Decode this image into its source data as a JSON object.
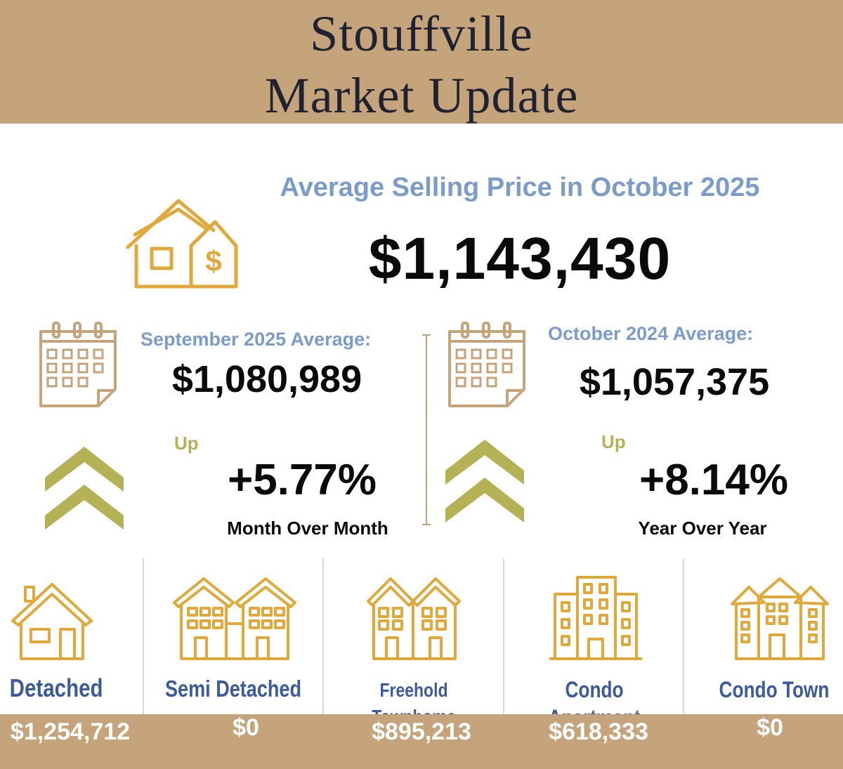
{
  "header": {
    "title_line1": "Stouffville",
    "title_line2": "Market Update"
  },
  "main": {
    "subtitle": "Average Selling Price in October 2025",
    "price": "$1,143,430",
    "icon": "house-dollar-icon"
  },
  "comparisons": [
    {
      "label": "September 2025 Average:",
      "price": "$1,080,989",
      "up_label": "Up",
      "change": "+5.77%",
      "caption": "Month Over Month",
      "icon": "calendar-icon",
      "arrow_icon": "double-chevron-up-icon"
    },
    {
      "label": "October 2024 Average:",
      "price": "$1,057,375",
      "up_label": "Up",
      "change": "+8.14%",
      "caption": "Year Over Year",
      "icon": "calendar-icon",
      "arrow_icon": "double-chevron-up-icon"
    }
  ],
  "property_types": [
    {
      "name": "Detached",
      "price": "$1,254,712",
      "icon": "house-icon"
    },
    {
      "name": "Semi Detached",
      "price": "$0",
      "icon": "semi-detached-icon"
    },
    {
      "name": "Freehold Townhome",
      "price": "$895,213",
      "icon": "townhome-icon"
    },
    {
      "name": "Condo Apartment",
      "price": "$618,333",
      "icon": "apartment-building-icon"
    },
    {
      "name": "Condo Town",
      "price": "$0",
      "icon": "condo-town-icon"
    }
  ],
  "colors": {
    "gold": "#c6a47b",
    "icon_gold": "#e0a93a",
    "blue_label": "#7b9ccb",
    "type_blue": "#3b5b9c",
    "olive": "#b5b256"
  }
}
